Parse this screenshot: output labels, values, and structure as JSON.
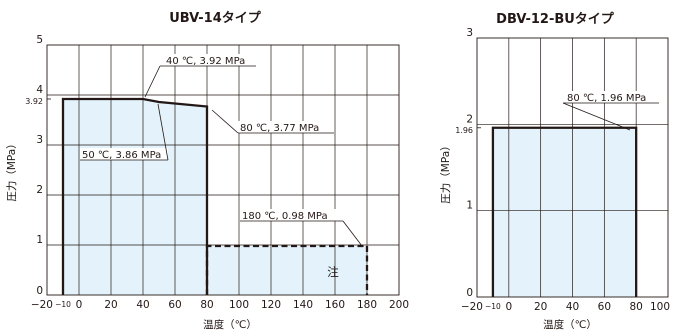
{
  "chart_data": [
    {
      "type": "area",
      "title": "UBV-14タイプ",
      "xlabel": "温度（℃）",
      "ylabel": "圧力（MPa）",
      "xlim": [
        -20,
        200
      ],
      "ylim": [
        0,
        5
      ],
      "grid": true,
      "x_ticks": [
        {
          "value": -20,
          "label": "−20"
        },
        {
          "value": -10,
          "label": "−10"
        },
        {
          "value": 0,
          "label": "0"
        },
        {
          "value": 20,
          "label": "20"
        },
        {
          "value": 40,
          "label": "40"
        },
        {
          "value": 60,
          "label": "60"
        },
        {
          "value": 80,
          "label": "80"
        },
        {
          "value": 100,
          "label": "100"
        },
        {
          "value": 120,
          "label": "120"
        },
        {
          "value": 140,
          "label": "140"
        },
        {
          "value": 160,
          "label": "160"
        },
        {
          "value": 180,
          "label": "180"
        },
        {
          "value": 200,
          "label": "200"
        }
      ],
      "y_ticks": [
        {
          "value": 0,
          "label": "0"
        },
        {
          "value": 1,
          "label": "1"
        },
        {
          "value": 2,
          "label": "2"
        },
        {
          "value": 3,
          "label": "3"
        },
        {
          "value": 3.92,
          "label": "3.92"
        },
        {
          "value": 4,
          "label": "4"
        },
        {
          "value": 5,
          "label": "5"
        }
      ],
      "series": [
        {
          "style": "solid",
          "x": [
            -10,
            -10,
            40,
            50,
            80,
            80
          ],
          "y": [
            0,
            3.92,
            3.92,
            3.86,
            3.77,
            0
          ]
        },
        {
          "style": "dashed",
          "x": [
            80,
            80,
            180,
            180
          ],
          "y": [
            0,
            0.98,
            0.98,
            0
          ]
        }
      ],
      "annotations": [
        {
          "text": "40 ℃, 3.92 MPa",
          "x": 40,
          "y": 3.92
        },
        {
          "text": "50 ℃, 3.86 MPa",
          "x": 50,
          "y": 3.86
        },
        {
          "text": "80 ℃, 3.77 MPa",
          "x": 80,
          "y": 3.77
        },
        {
          "text": "180 ℃, 0.98 MPa",
          "x": 180,
          "y": 0.98
        },
        {
          "text": "注",
          "x": 150,
          "y": 0.45
        }
      ],
      "fill_color": "#e3f2fb",
      "line_color": "#231815"
    },
    {
      "type": "area",
      "title": "DBV-12-BUタイプ",
      "xlabel": "温度（℃）",
      "ylabel": "圧力（MPa）",
      "xlim": [
        -20,
        100
      ],
      "ylim": [
        0,
        3
      ],
      "grid": true,
      "x_ticks": [
        {
          "value": -20,
          "label": "−20"
        },
        {
          "value": -10,
          "label": "−10"
        },
        {
          "value": 0,
          "label": "0"
        },
        {
          "value": 20,
          "label": "20"
        },
        {
          "value": 40,
          "label": "40"
        },
        {
          "value": 60,
          "label": "60"
        },
        {
          "value": 80,
          "label": "80"
        },
        {
          "value": 100,
          "label": "100"
        }
      ],
      "y_ticks": [
        {
          "value": 0,
          "label": "0"
        },
        {
          "value": 1,
          "label": "1"
        },
        {
          "value": 1.96,
          "label": "1.96"
        },
        {
          "value": 2,
          "label": "2"
        },
        {
          "value": 3,
          "label": "3"
        }
      ],
      "series": [
        {
          "style": "solid",
          "x": [
            -10,
            -10,
            80,
            80
          ],
          "y": [
            0,
            1.96,
            1.96,
            0
          ]
        }
      ],
      "annotations": [
        {
          "text": "80 ℃, 1.96 MPa",
          "x": 80,
          "y": 1.96
        }
      ],
      "fill_color": "#e3f2fb",
      "line_color": "#231815"
    }
  ]
}
